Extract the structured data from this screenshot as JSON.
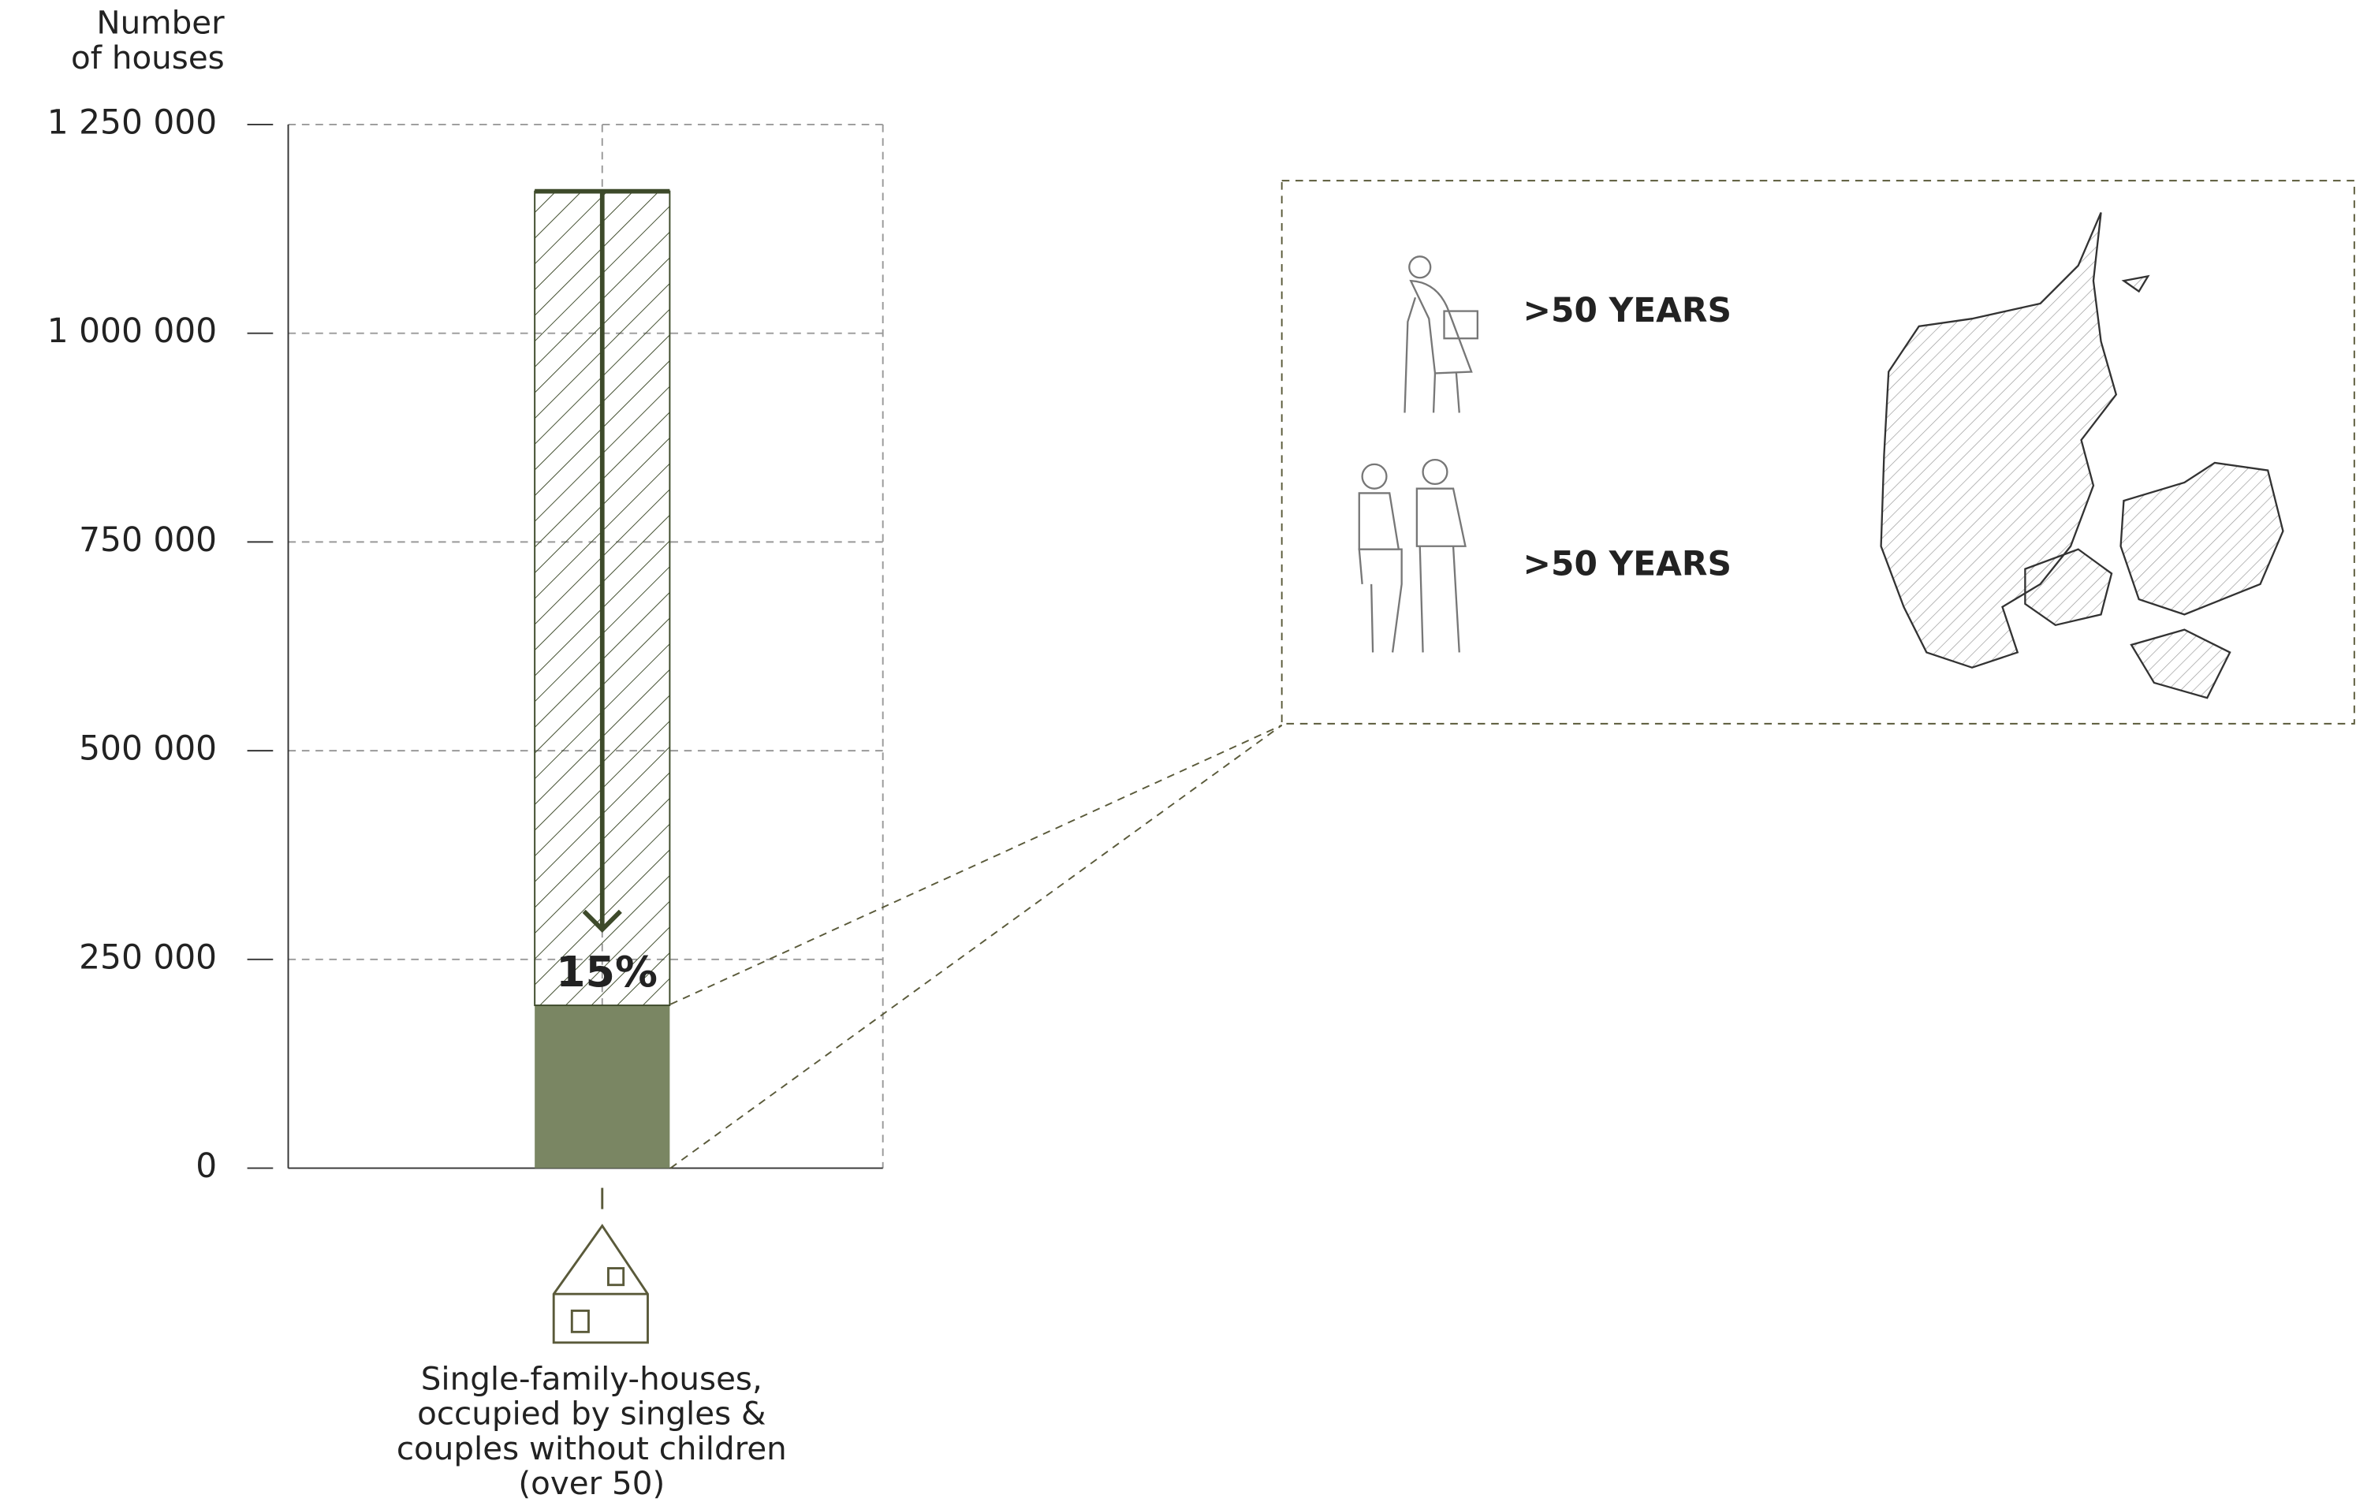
{
  "chart_data": {
    "type": "stacked_bar",
    "ylabel": [
      "Number",
      "of houses"
    ],
    "categories": [
      "Single-family-houses, occupied by singles & couples without children (over 50)"
    ],
    "series": [
      {
        "color": "#7a8663",
        "hatch": false,
        "values": [
          195000
        ]
      },
      {
        "color": "#3d4a2a",
        "hatch": true,
        "values": [
          975000
        ]
      }
    ],
    "annotation": "15%",
    "ylim": [
      0,
      1250000
    ],
    "yticks": [
      0,
      {
        "value": 250000,
        "label": "250 000"
      },
      {
        "value": 500000,
        "label": "500 000"
      },
      {
        "value": 750000,
        "label": "750 000"
      },
      {
        "value": 1000000,
        "label": "1 000 000"
      },
      {
        "value": 1250000,
        "label": "1 250 000"
      }
    ],
    "grid": true
  },
  "inset": {
    "labels": [
      ">50 YEARS",
      ">50 YEARS"
    ]
  }
}
